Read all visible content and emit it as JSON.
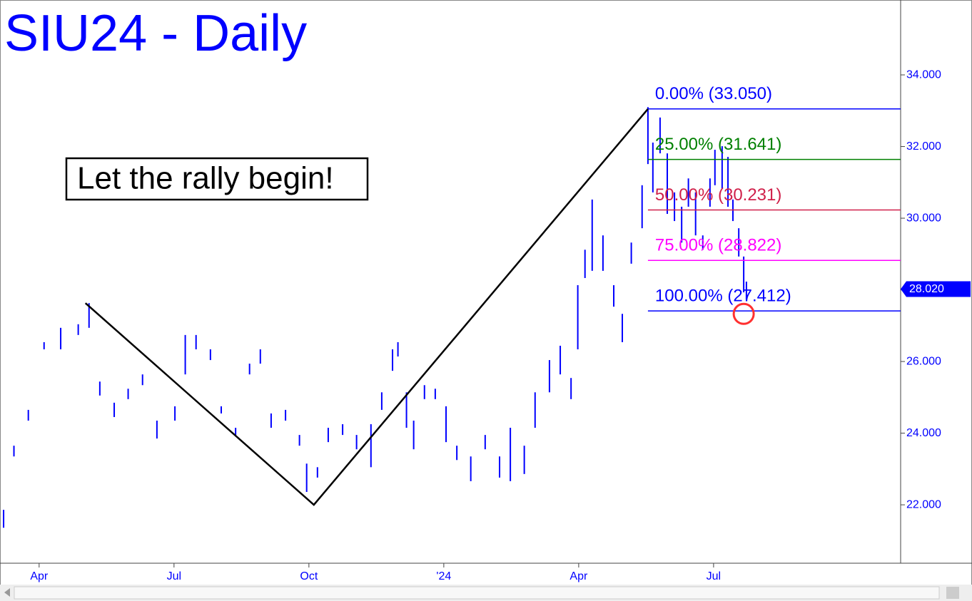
{
  "chart_data": {
    "type": "ohlc",
    "title": "SIU24 - Daily",
    "annotation": "Let the rally begin!",
    "xlim": [
      -0.87,
      19.16
    ],
    "ylim": [
      20.37,
      36.09
    ],
    "xticks": [
      {
        "value": 0,
        "label": "Apr"
      },
      {
        "value": 3,
        "label": "Jul"
      },
      {
        "value": 6,
        "label": "Oct"
      },
      {
        "value": 9,
        "label": "'24"
      },
      {
        "value": 12,
        "label": "Apr"
      },
      {
        "value": 15,
        "label": "Jul"
      }
    ],
    "yticks": [
      {
        "value": 22,
        "label": "22.000"
      },
      {
        "value": 24,
        "label": "24.000"
      },
      {
        "value": 26,
        "label": "26.000"
      },
      {
        "value": 28,
        "label": "28.000"
      },
      {
        "value": 30,
        "label": "30.000"
      },
      {
        "value": 32,
        "label": "32.000"
      },
      {
        "value": 34,
        "label": "34.000"
      }
    ],
    "series": [
      {
        "color": "#0000ff",
        "x": [
          -0.79,
          -0.56,
          -0.24,
          0.11,
          0.48,
          0.87,
          1.11,
          1.35,
          1.67,
          1.98,
          2.3,
          2.62,
          3.02,
          3.25,
          3.49,
          3.81,
          4.05,
          4.37,
          4.68,
          4.92,
          5.16,
          5.48,
          5.79,
          5.95,
          6.19,
          6.43,
          6.75,
          7.06,
          7.38,
          7.62,
          7.86,
          7.98,
          8.17,
          8.33,
          8.57,
          8.81,
          9.05,
          9.29,
          9.6,
          9.92,
          10.24,
          10.48,
          10.79,
          11.03,
          11.35,
          11.59,
          11.83,
          11.98,
          12.14,
          12.3,
          12.54,
          12.78,
          12.97,
          13.17,
          13.41,
          13.54,
          13.65,
          13.81,
          13.97,
          14.13,
          14.29,
          14.44,
          14.6,
          14.76,
          14.92,
          15.03,
          15.19,
          15.32,
          15.43,
          15.56,
          15.67,
          15.73
        ],
        "high": [
          21.86,
          23.65,
          24.65,
          26.54,
          26.94,
          27.04,
          27.63,
          25.44,
          24.85,
          25.24,
          25.64,
          24.35,
          24.75,
          26.74,
          26.74,
          26.34,
          24.75,
          24.15,
          25.94,
          26.34,
          24.55,
          24.65,
          23.95,
          23.15,
          23.05,
          24.15,
          24.25,
          23.95,
          24.25,
          25.14,
          26.34,
          26.54,
          25.14,
          24.35,
          25.34,
          25.24,
          24.75,
          23.65,
          23.35,
          23.95,
          23.35,
          24.15,
          23.65,
          25.14,
          26.04,
          26.44,
          25.54,
          28.13,
          29.12,
          30.52,
          29.52,
          28.13,
          27.33,
          29.32,
          30.92,
          33.1,
          32.11,
          32.81,
          31.81,
          30.72,
          30.32,
          31.11,
          30.72,
          29.52,
          31.11,
          31.91,
          32.01,
          31.71,
          30.52,
          29.72,
          28.93,
          28.23
        ],
        "low": [
          21.36,
          23.35,
          24.35,
          26.34,
          26.34,
          26.74,
          26.94,
          25.05,
          24.45,
          24.95,
          25.34,
          23.85,
          24.35,
          25.64,
          26.34,
          26.04,
          24.55,
          23.95,
          25.64,
          25.94,
          24.15,
          24.35,
          23.65,
          22.36,
          22.76,
          23.75,
          23.95,
          23.55,
          23.05,
          24.65,
          25.74,
          26.14,
          24.15,
          23.55,
          24.95,
          24.95,
          23.75,
          23.25,
          22.66,
          23.55,
          22.76,
          22.66,
          22.86,
          24.15,
          25.14,
          25.64,
          24.95,
          26.34,
          28.33,
          28.53,
          28.53,
          27.53,
          26.54,
          28.73,
          29.72,
          31.51,
          30.72,
          31.81,
          30.12,
          29.92,
          29.32,
          30.32,
          29.52,
          29.12,
          30.32,
          30.92,
          30.82,
          30.32,
          29.92,
          28.93,
          27.93,
          27.73
        ]
      }
    ],
    "trendline": {
      "color": "#000000",
      "x": [
        1.03,
        6.11,
        13.54
      ],
      "y": [
        27.63,
        22.0,
        33.05
      ]
    },
    "fib_levels": [
      {
        "label": "0.00% (33.050)",
        "value": 33.05,
        "color": "#0000ff"
      },
      {
        "label": "25.00% (31.641)",
        "value": 31.641,
        "color": "#008000"
      },
      {
        "label": "50.00% (30.231)",
        "value": 30.231,
        "color": "#d0204a"
      },
      {
        "label": "75.00% (28.822)",
        "value": 28.822,
        "color": "#ff00ff"
      },
      {
        "label": "100.00% (27.412)",
        "value": 27.412,
        "color": "#0000ff"
      }
    ],
    "marker": {
      "x": 15.67,
      "y": 27.33,
      "color": "#ff3030"
    },
    "last_price": {
      "value": 28.02,
      "label": "28.020",
      "color": "#0000ff"
    }
  }
}
